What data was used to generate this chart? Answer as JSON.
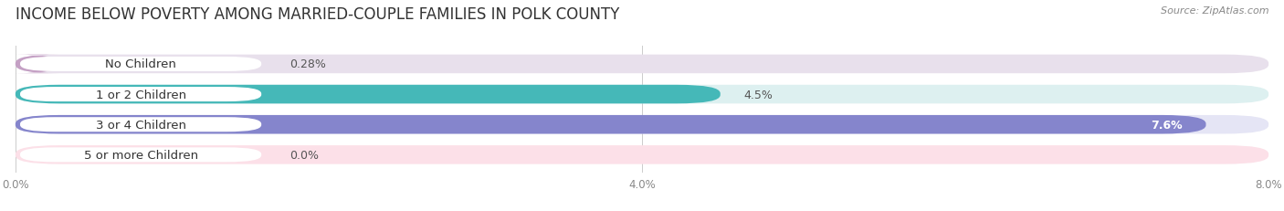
{
  "title": "INCOME BELOW POVERTY AMONG MARRIED-COUPLE FAMILIES IN POLK COUNTY",
  "source": "Source: ZipAtlas.com",
  "categories": [
    "No Children",
    "1 or 2 Children",
    "3 or 4 Children",
    "5 or more Children"
  ],
  "values": [
    0.28,
    4.5,
    7.6,
    0.0
  ],
  "value_labels": [
    "0.28%",
    "4.5%",
    "7.6%",
    "0.0%"
  ],
  "bar_colors": [
    "#c4a0c4",
    "#45b8b8",
    "#8585cc",
    "#f08098"
  ],
  "bar_bg_colors": [
    "#e8e0ec",
    "#ddf0f0",
    "#e5e5f5",
    "#fce0e8"
  ],
  "value_label_colors": [
    "#555555",
    "#555555",
    "#ffffff",
    "#555555"
  ],
  "value_label_inside": [
    false,
    false,
    true,
    false
  ],
  "xlim": [
    0,
    8.0
  ],
  "xticks": [
    0.0,
    4.0,
    8.0
  ],
  "xticklabels": [
    "0.0%",
    "4.0%",
    "8.0%"
  ],
  "title_fontsize": 12,
  "label_fontsize": 9.5,
  "value_fontsize": 9,
  "background_color": "#ffffff",
  "pill_bg": "#ffffff",
  "pill_text_colors": [
    "#555555",
    "#333333",
    "#555555",
    "#555555"
  ]
}
